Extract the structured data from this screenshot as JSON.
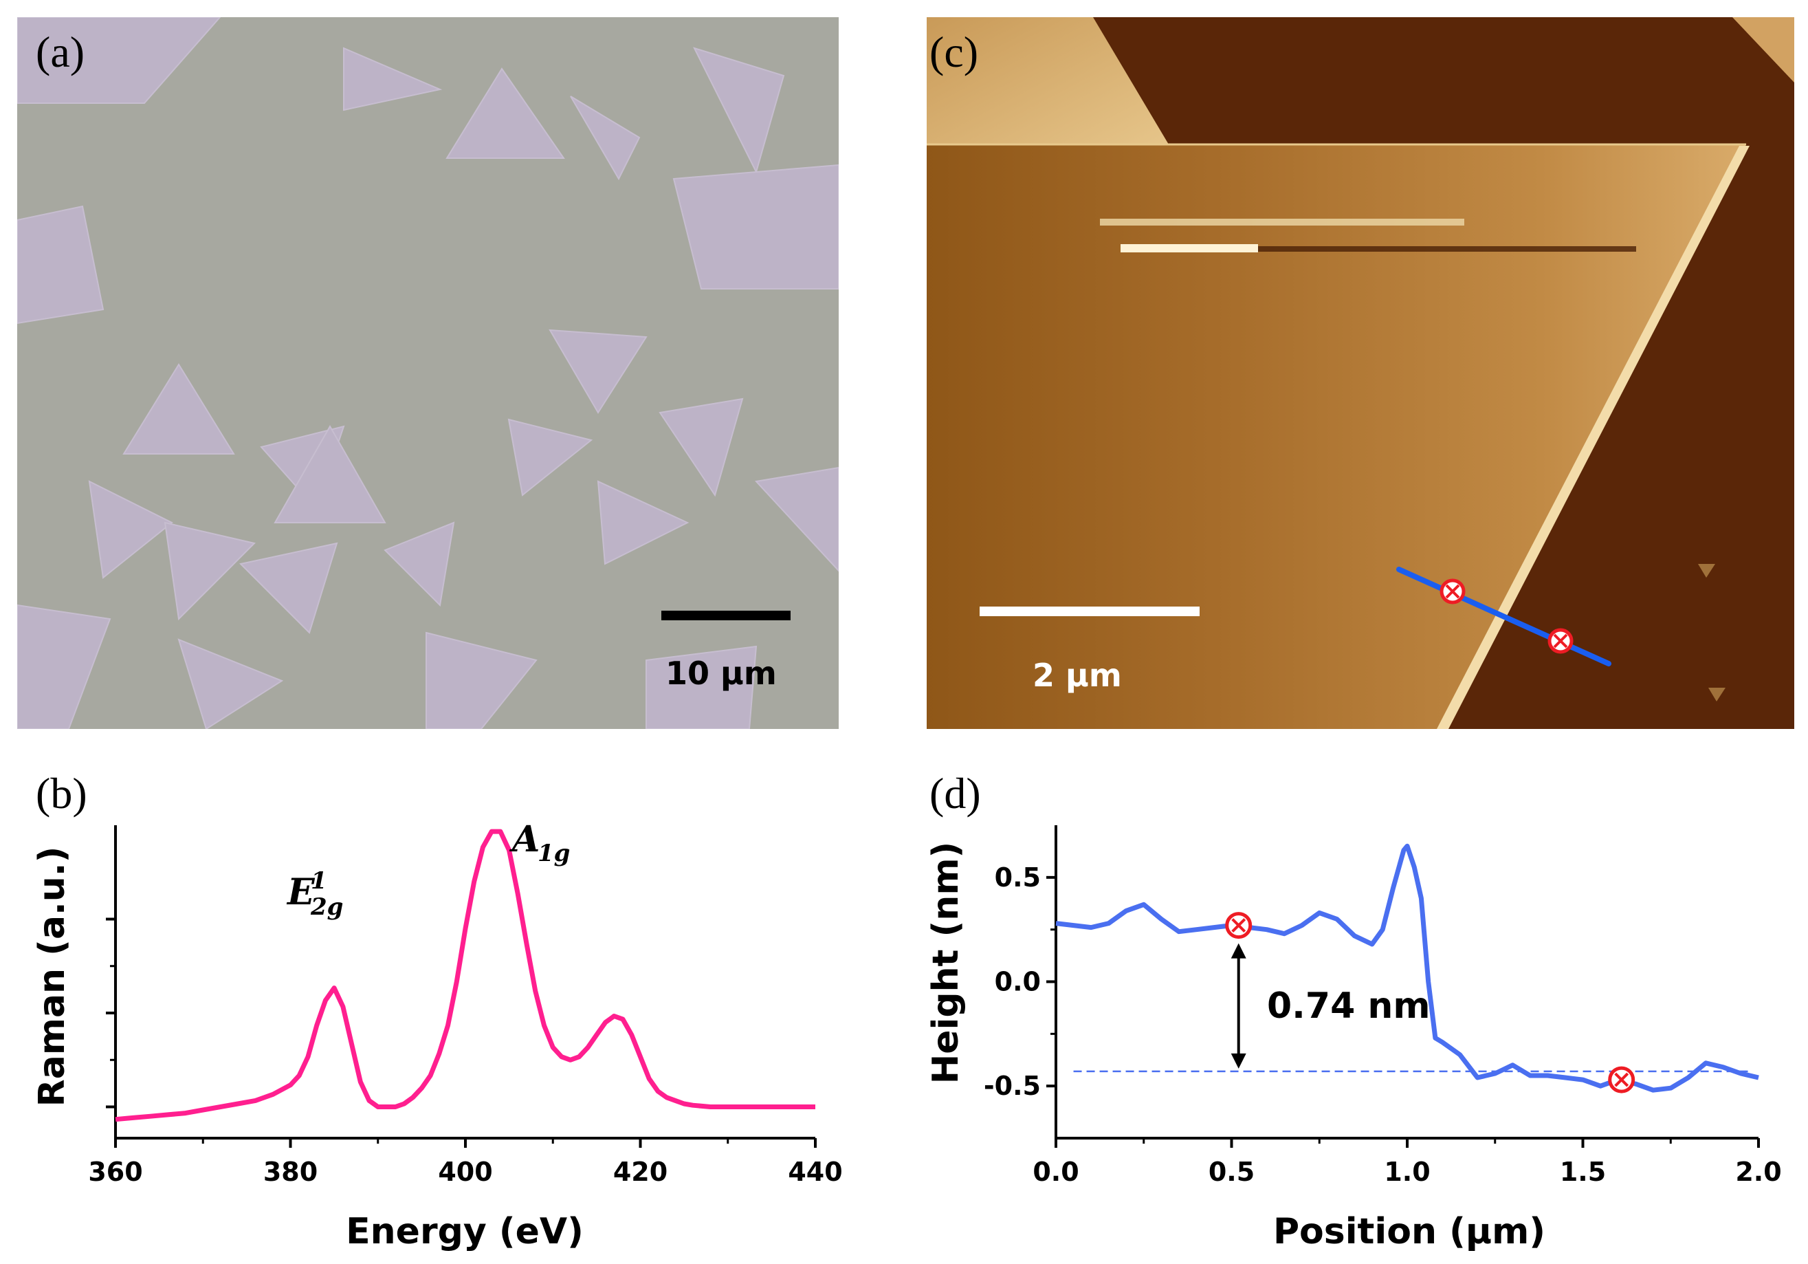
{
  "panel_a": {
    "label": "(a)",
    "scale_bar": "10 μm",
    "background_color": "#a7a8a0",
    "flake_color": "#bdb3c7"
  },
  "panel_c": {
    "label": "(c)",
    "scale_bar": "2 μm",
    "colors": {
      "substrate": "#5a2608",
      "flake": "#b27a34",
      "highlight": "#e8c98c",
      "line": "#1a5ef0",
      "marker": "#ee1c24"
    }
  },
  "chart_data": [
    {
      "panel": "(b)",
      "type": "line",
      "title": "",
      "xlabel": "Energy (eV)",
      "ylabel": "Raman (a.u.)",
      "xlim": [
        360,
        440
      ],
      "ylim": [
        0,
        1
      ],
      "xticks": [
        360,
        380,
        400,
        420,
        440
      ],
      "yticks": [
        0.1,
        0.4,
        0.7
      ],
      "show_y_tick_labels": false,
      "color": "#ff1f8f",
      "annotations": [
        {
          "text": "E",
          "sup": "1",
          "sub": "2g",
          "x": 385,
          "y": 0.6
        },
        {
          "text": "A",
          "sub": "1g",
          "x": 405,
          "y": 0.93
        }
      ],
      "x": [
        360,
        362,
        364,
        366,
        368,
        370,
        372,
        374,
        376,
        378,
        380,
        381,
        382,
        383,
        384,
        385,
        386,
        387,
        388,
        389,
        390,
        391,
        392,
        393,
        394,
        395,
        396,
        397,
        398,
        399,
        400,
        401,
        402,
        403,
        404,
        405,
        406,
        407,
        408,
        409,
        410,
        411,
        412,
        413,
        414,
        415,
        416,
        417,
        418,
        419,
        420,
        421,
        422,
        423,
        424,
        425,
        426,
        428,
        430,
        432,
        434,
        436,
        438,
        440
      ],
      "y": [
        0.06,
        0.065,
        0.07,
        0.075,
        0.08,
        0.09,
        0.1,
        0.11,
        0.12,
        0.14,
        0.17,
        0.2,
        0.26,
        0.36,
        0.44,
        0.48,
        0.42,
        0.3,
        0.18,
        0.12,
        0.1,
        0.1,
        0.1,
        0.11,
        0.13,
        0.16,
        0.2,
        0.27,
        0.36,
        0.5,
        0.67,
        0.82,
        0.93,
        0.98,
        0.98,
        0.92,
        0.78,
        0.62,
        0.47,
        0.36,
        0.29,
        0.26,
        0.25,
        0.26,
        0.29,
        0.33,
        0.37,
        0.39,
        0.38,
        0.33,
        0.26,
        0.19,
        0.15,
        0.13,
        0.12,
        0.11,
        0.105,
        0.1,
        0.1,
        0.1,
        0.1,
        0.1,
        0.1,
        0.1
      ]
    },
    {
      "panel": "(d)",
      "type": "line",
      "title": "",
      "xlabel": "Position (μm)",
      "ylabel": "Height (nm)",
      "xlim": [
        0,
        2.0
      ],
      "ylim": [
        -0.75,
        0.75
      ],
      "xticks": [
        0.0,
        0.5,
        1.0,
        1.5,
        2.0
      ],
      "yticks": [
        -0.5,
        0.0,
        0.5
      ],
      "color": "#4a6ff0",
      "annotations": [
        {
          "text": "0.74 nm"
        }
      ],
      "markers": [
        {
          "x": 0.52,
          "y": 0.27
        },
        {
          "x": 1.61,
          "y": -0.47
        }
      ],
      "baseline_y": -0.43,
      "arrow": {
        "x": 0.52,
        "y_top": 0.27,
        "y_bottom": -0.43
      },
      "x": [
        0.0,
        0.05,
        0.1,
        0.15,
        0.2,
        0.25,
        0.3,
        0.35,
        0.4,
        0.45,
        0.5,
        0.55,
        0.6,
        0.65,
        0.7,
        0.75,
        0.8,
        0.85,
        0.9,
        0.93,
        0.96,
        0.99,
        1.0,
        1.02,
        1.04,
        1.06,
        1.08,
        1.1,
        1.15,
        1.2,
        1.25,
        1.3,
        1.35,
        1.4,
        1.45,
        1.5,
        1.55,
        1.6,
        1.65,
        1.7,
        1.75,
        1.8,
        1.85,
        1.9,
        1.95,
        2.0
      ],
      "y": [
        0.28,
        0.27,
        0.26,
        0.28,
        0.34,
        0.37,
        0.3,
        0.24,
        0.25,
        0.26,
        0.27,
        0.26,
        0.25,
        0.23,
        0.27,
        0.33,
        0.3,
        0.22,
        0.18,
        0.25,
        0.45,
        0.63,
        0.65,
        0.55,
        0.4,
        0.0,
        -0.27,
        -0.29,
        -0.35,
        -0.46,
        -0.44,
        -0.4,
        -0.45,
        -0.45,
        -0.46,
        -0.47,
        -0.5,
        -0.47,
        -0.49,
        -0.52,
        -0.51,
        -0.46,
        -0.39,
        -0.41,
        -0.44,
        -0.46
      ]
    }
  ]
}
